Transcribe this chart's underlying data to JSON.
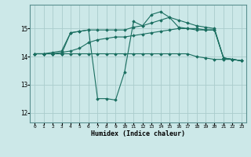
{
  "xlabel": "Humidex (Indice chaleur)",
  "bg_color": "#cce8e8",
  "grid_color": "#aacccc",
  "line_color": "#1a6e60",
  "xlim": [
    -0.5,
    23.5
  ],
  "ylim": [
    11.65,
    15.85
  ],
  "yticks": [
    12,
    13,
    14,
    15
  ],
  "xticks": [
    0,
    1,
    2,
    3,
    4,
    5,
    6,
    7,
    8,
    9,
    10,
    11,
    12,
    13,
    14,
    15,
    16,
    17,
    18,
    19,
    20,
    21,
    22,
    23
  ],
  "series": [
    {
      "x": [
        0,
        1,
        2,
        3,
        4,
        5,
        6,
        7,
        8,
        9,
        10,
        11,
        12,
        13,
        14,
        15,
        16,
        17,
        18,
        19,
        20,
        21,
        22,
        23
      ],
      "y": [
        14.1,
        14.1,
        14.1,
        14.1,
        14.1,
        14.1,
        14.1,
        14.1,
        14.1,
        14.1,
        14.1,
        14.1,
        14.1,
        14.1,
        14.1,
        14.1,
        14.1,
        14.1,
        14.0,
        13.95,
        13.9,
        13.9,
        13.9,
        13.85
      ]
    },
    {
      "x": [
        0,
        1,
        2,
        3,
        4,
        5,
        6,
        7,
        8,
        9,
        10,
        11,
        12,
        13,
        14,
        15,
        16,
        17,
        18,
        19,
        20,
        21,
        22,
        23
      ],
      "y": [
        14.1,
        14.1,
        14.1,
        14.15,
        14.2,
        14.3,
        14.5,
        14.6,
        14.65,
        14.7,
        14.7,
        14.75,
        14.8,
        14.85,
        14.9,
        14.95,
        15.0,
        15.0,
        15.0,
        14.95,
        14.95,
        13.95,
        13.9,
        13.85
      ]
    },
    {
      "x": [
        0,
        1,
        2,
        3,
        4,
        5,
        6,
        7,
        8,
        9,
        10,
        11,
        12,
        13,
        14,
        15,
        16,
        17,
        18,
        19,
        20,
        21,
        22,
        23
      ],
      "y": [
        14.1,
        14.1,
        14.15,
        14.2,
        14.85,
        14.9,
        14.95,
        14.95,
        14.95,
        14.95,
        14.95,
        15.05,
        15.1,
        15.2,
        15.3,
        15.4,
        15.3,
        15.2,
        15.1,
        15.05,
        15.0,
        13.95,
        13.9,
        13.85
      ]
    },
    {
      "x": [
        0,
        1,
        2,
        3,
        4,
        5,
        6,
        7,
        8,
        9,
        10,
        11,
        12,
        13,
        14,
        15,
        16,
        17,
        18,
        19,
        20,
        21,
        22,
        23
      ],
      "y": [
        14.1,
        14.1,
        14.1,
        14.1,
        14.85,
        14.9,
        14.95,
        12.5,
        12.5,
        12.45,
        13.45,
        15.25,
        15.1,
        15.5,
        15.6,
        15.4,
        15.05,
        15.0,
        14.95,
        14.95,
        14.95,
        13.95,
        13.9,
        13.85
      ]
    }
  ]
}
